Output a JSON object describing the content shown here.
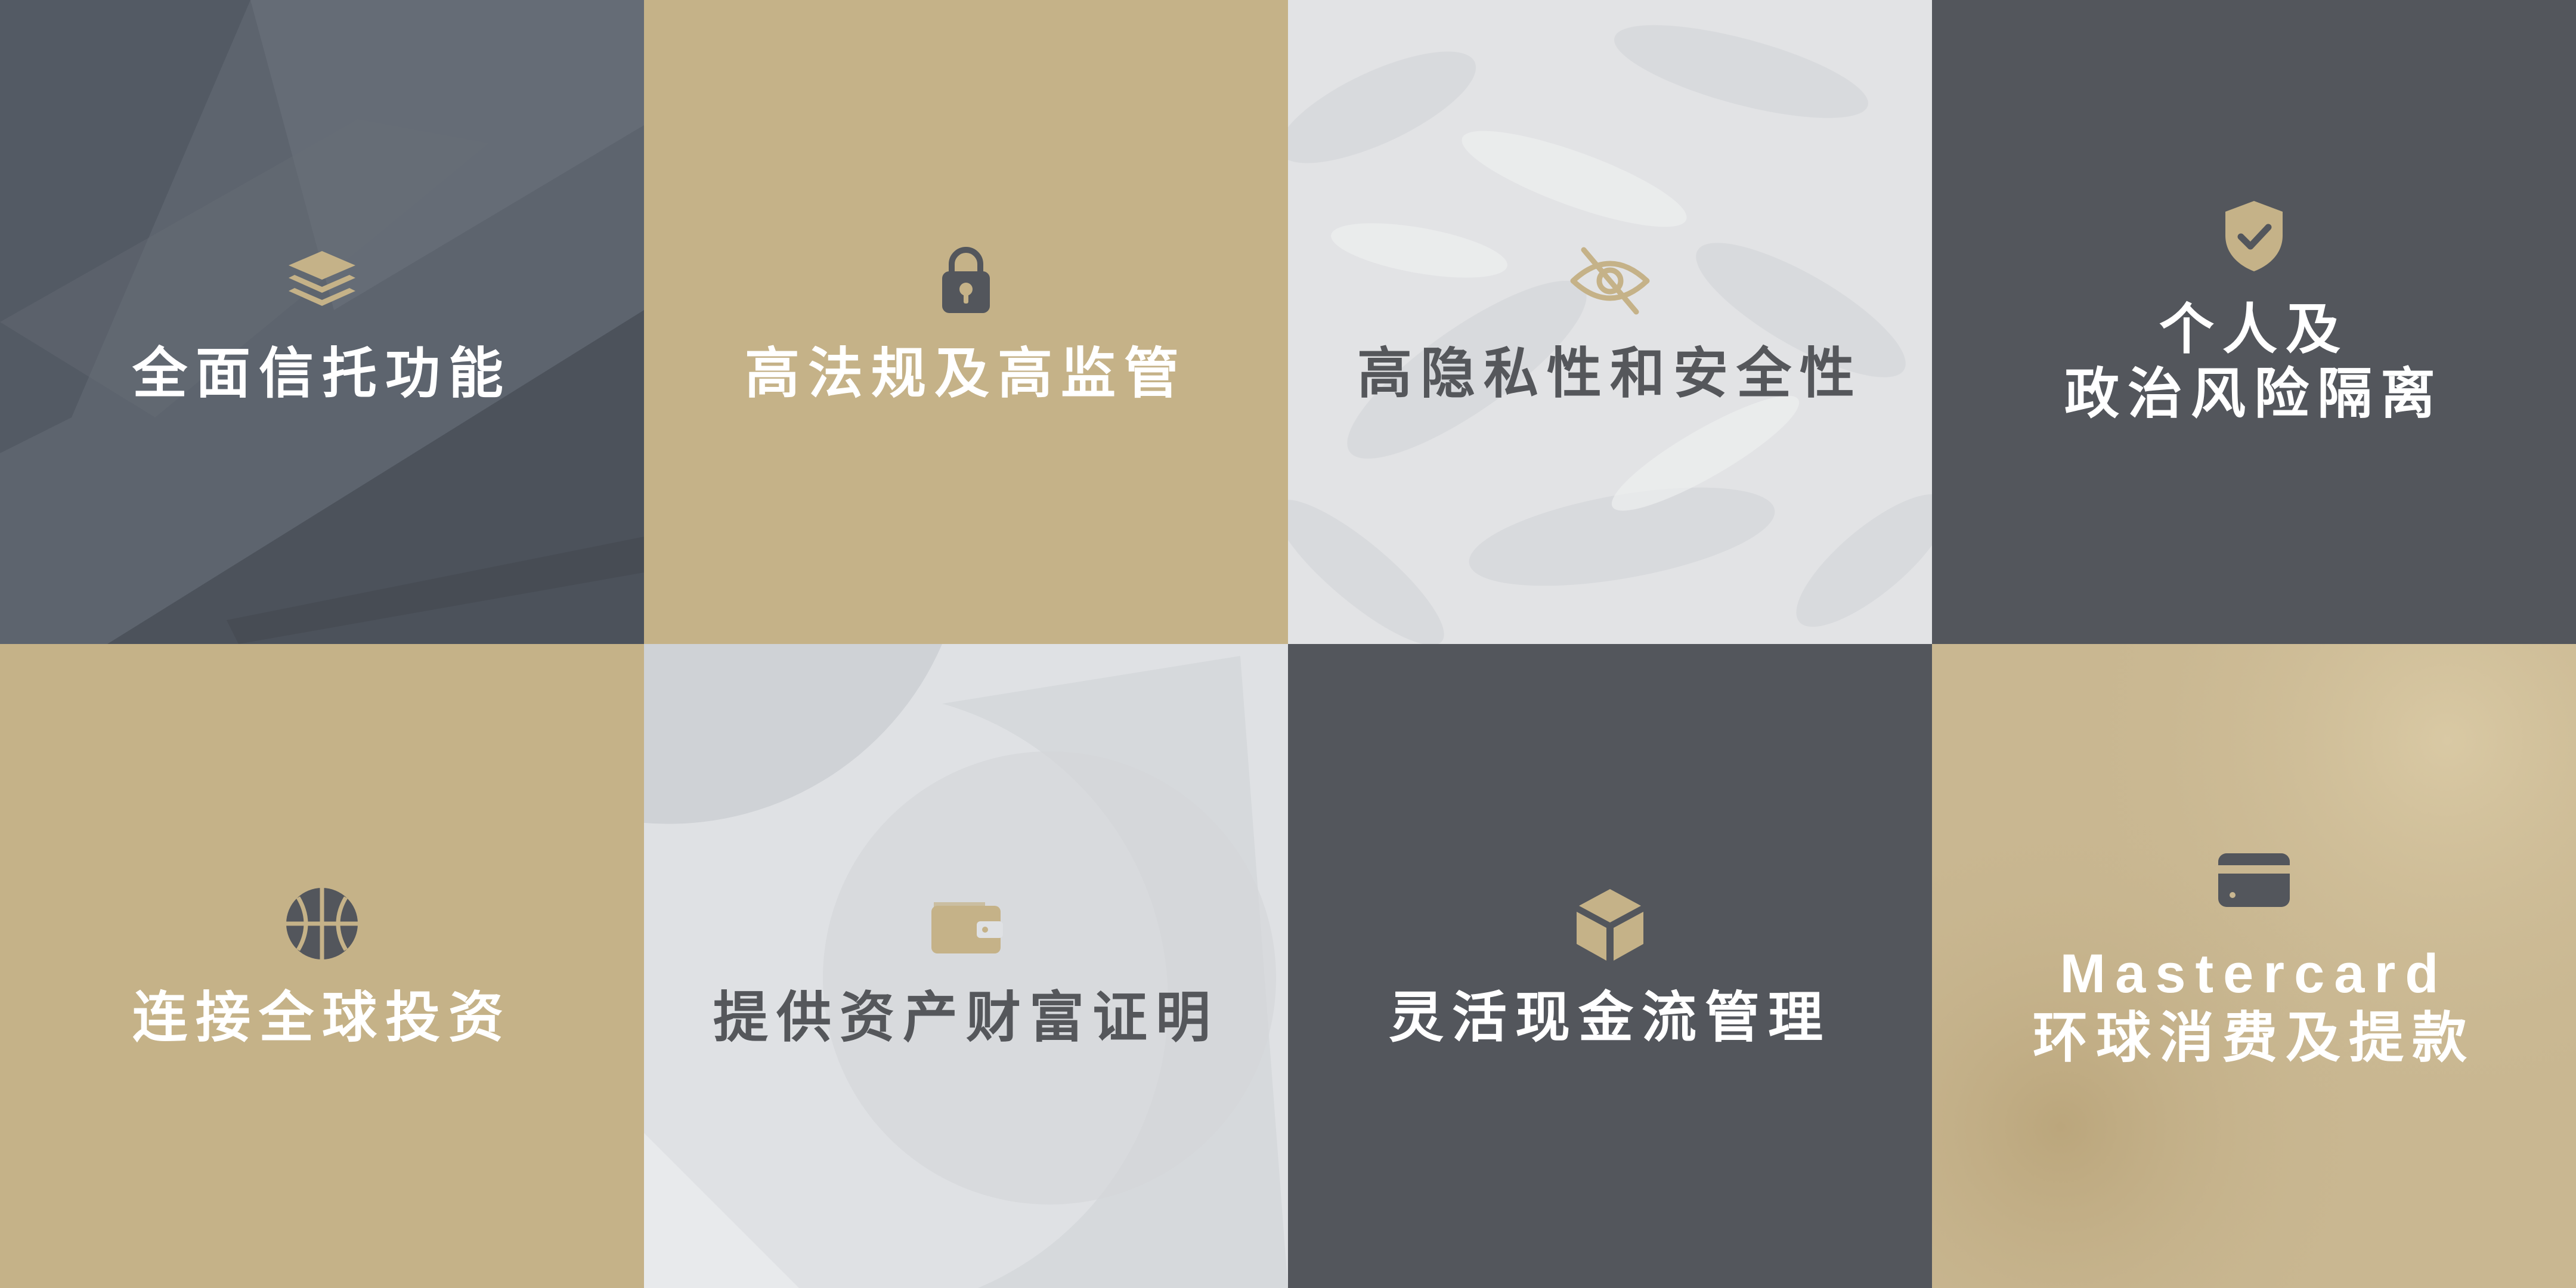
{
  "tiles": [
    {
      "label_lines": [
        "全面信托功能"
      ],
      "icon": "layers-icon"
    },
    {
      "label_lines": [
        "高法规及高监管"
      ],
      "icon": "lock-icon"
    },
    {
      "label_lines": [
        "高隐私性和安全性"
      ],
      "icon": "eye-off-icon"
    },
    {
      "label_lines": [
        "个人及",
        "政治风险隔离"
      ],
      "icon": "shield-check-icon"
    },
    {
      "label_lines": [
        "连接全球投资"
      ],
      "icon": "globe-basketball-icon"
    },
    {
      "label_lines": [
        "提供资产财富证明"
      ],
      "icon": "wallet-icon"
    },
    {
      "label_lines": [
        "灵活现金流管理"
      ],
      "icon": "cube-icon"
    },
    {
      "label_lines": [
        "Mastercard",
        "环球消费及提款"
      ],
      "icon": "credit-card-icon"
    }
  ],
  "colors": {
    "gold": "#c5b288",
    "charcoal": "#53565c",
    "slate": "#5f6670",
    "light_gray": "#dfe1e4",
    "white": "#ffffff",
    "dark_text": "#55575b"
  }
}
